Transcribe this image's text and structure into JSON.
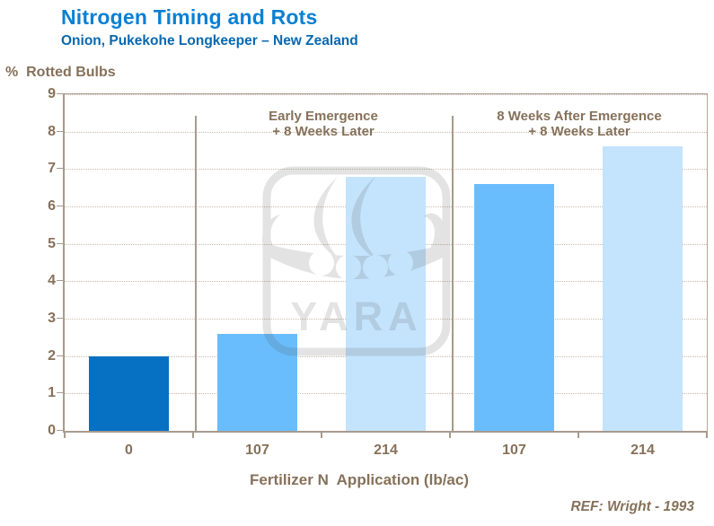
{
  "chart_data": {
    "type": "bar",
    "title": "Nitrogen Timing and Rots",
    "subtitle": "Onion, Pukekohe Longkeeper – New Zealand",
    "ylabel": "%  Rotted Bulbs",
    "xlabel": "Fertilizer N  Application (lb/ac)",
    "ylim": [
      0,
      9
    ],
    "ytick_step": 1,
    "grid": "horizontal-dotted",
    "legend": "none",
    "categories": [
      "0",
      "107",
      "214",
      "107",
      "214"
    ],
    "values": [
      2.0,
      2.6,
      6.8,
      6.6,
      7.6
    ],
    "bar_colors": [
      "#0671c2",
      "#6abdfc",
      "#c4e3fd",
      "#6abdfc",
      "#c4e3fd"
    ],
    "group_divider_boundaries": [
      1,
      3
    ],
    "groups": [
      {
        "annotation_line1": "Early Emergence",
        "annotation_line2": "+ 8 Weeks Later",
        "categories": [
          "107",
          "214"
        ]
      },
      {
        "annotation_line1": "8 Weeks After Emergence",
        "annotation_line2": "+ 8 Weeks Later",
        "categories": [
          "107",
          "214"
        ]
      }
    ],
    "reference": "REF: Wright - 1993"
  },
  "watermark": {
    "name": "yara-viking-ship-logo",
    "text": "YARA"
  },
  "colors": {
    "title_blue": "#0a80d2",
    "subtitle_blue": "#0768b0",
    "axis_text_brown": "#86715a",
    "axis_line_tan": "#a79a8d",
    "gridline_tan": "#c9bcae",
    "bar_dark_blue": "#0671c2",
    "bar_medium_blue": "#6abdfc",
    "bar_light_blue": "#c4e3fd"
  }
}
